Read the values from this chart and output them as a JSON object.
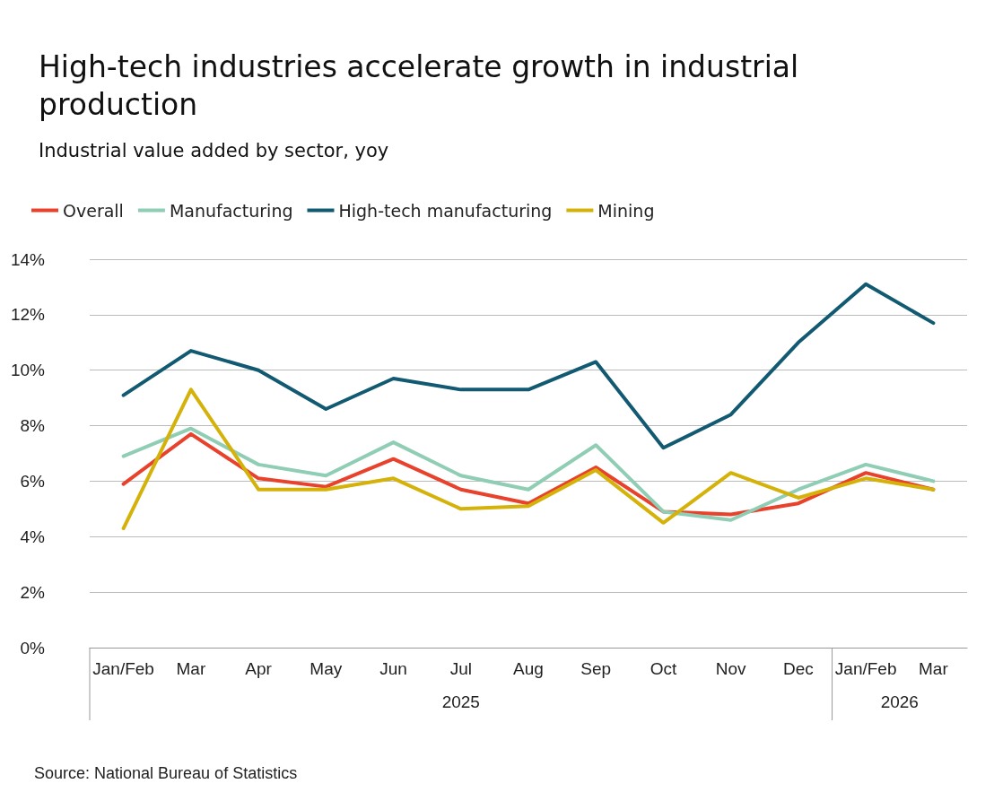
{
  "chart_data": {
    "type": "line",
    "title": "High-tech industries accelerate growth in industrial production",
    "subtitle": "Industrial value added by sector, yoy",
    "categories": [
      "Jan/Feb",
      "Mar",
      "Apr",
      "May",
      "Jun",
      "Jul",
      "Aug",
      "Sep",
      "Oct",
      "Nov",
      "Dec",
      "Jan/Feb",
      "Mar"
    ],
    "series": [
      {
        "name": "Overall",
        "color": "#e8412c",
        "values": [
          5.9,
          7.7,
          6.1,
          5.8,
          6.8,
          5.7,
          5.2,
          6.5,
          4.9,
          4.8,
          5.2,
          6.3,
          5.7
        ]
      },
      {
        "name": "Manufacturing",
        "color": "#8fcdb4",
        "values": [
          6.9,
          7.9,
          6.6,
          6.2,
          7.4,
          6.2,
          5.7,
          7.3,
          4.9,
          4.6,
          5.7,
          6.6,
          6.0
        ]
      },
      {
        "name": "High-tech manufacturing",
        "color": "#125a72",
        "values": [
          9.1,
          10.7,
          10.0,
          8.6,
          9.7,
          9.3,
          9.3,
          10.3,
          7.2,
          8.4,
          11.0,
          13.1,
          11.7
        ]
      },
      {
        "name": "Mining",
        "color": "#d4b20a",
        "values": [
          4.3,
          9.3,
          5.7,
          5.7,
          6.1,
          5.0,
          5.1,
          6.4,
          4.5,
          6.3,
          5.4,
          6.1,
          5.7
        ]
      }
    ],
    "ylim": [
      0,
      14
    ],
    "yticks": [
      {
        "value": 0,
        "label": "0%"
      },
      {
        "value": 2,
        "label": "2%"
      },
      {
        "value": 4,
        "label": "4%"
      },
      {
        "value": 6,
        "label": "6%"
      },
      {
        "value": 8,
        "label": "8%"
      },
      {
        "value": 10,
        "label": "10%"
      },
      {
        "value": 12,
        "label": "12%"
      },
      {
        "value": 14,
        "label": "14%"
      }
    ],
    "grid": "y",
    "legend": "top left",
    "marker": "none",
    "line_style": "solid",
    "annotations": [
      "2025",
      "2026",
      "Source: National Bureau of Statistics"
    ]
  }
}
